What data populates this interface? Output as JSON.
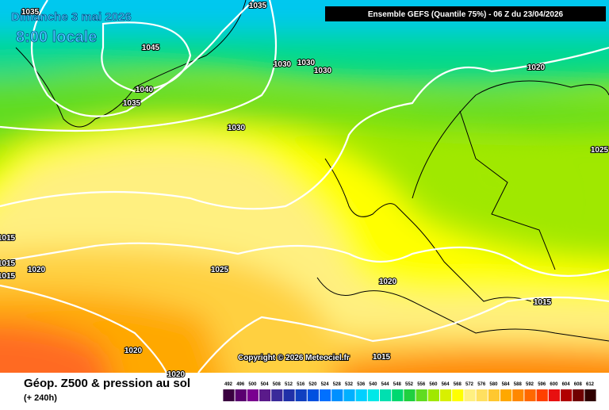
{
  "header": {
    "title": "Dimanche 3 mai 2026",
    "time": "8:00 locale",
    "model": "Ensemble GEFS  (Quantile 75%) - 06 Z du 23/04/2026",
    "copyright": "Copyright © 2026 Meteociel.fr"
  },
  "isobar_labels": [
    1035,
    1035,
    1045,
    1030,
    1030,
    1030,
    1040,
    1035,
    1030,
    1020,
    1025,
    1015,
    1015,
    1015,
    1020,
    1025,
    1020,
    1015,
    1020,
    1015,
    1020
  ],
  "legend": {
    "title": "Géop. Z500 & pression au sol",
    "lead": "(+ 240h)",
    "ticks": [
      492,
      496,
      500,
      504,
      508,
      512,
      516,
      520,
      524,
      528,
      532,
      536,
      540,
      544,
      548,
      552,
      556,
      560,
      564,
      568,
      572,
      576,
      580,
      584,
      588,
      592,
      596,
      600,
      604,
      608,
      612
    ],
    "colors": [
      "#3a0040",
      "#5a0070",
      "#7a0090",
      "#5a1a8a",
      "#3a2a9a",
      "#2030a8",
      "#1040c0",
      "#0050e0",
      "#0070ff",
      "#0090ff",
      "#00b0ff",
      "#00d0ff",
      "#00e8e8",
      "#00e0b0",
      "#00d870",
      "#20d040",
      "#60dc20",
      "#a0e800",
      "#d8f000",
      "#ffff00",
      "#fff080",
      "#ffe060",
      "#ffc830",
      "#ffa800",
      "#ff8800",
      "#ff6800",
      "#ff4000",
      "#e81010",
      "#b00000",
      "#700000",
      "#300000"
    ]
  }
}
